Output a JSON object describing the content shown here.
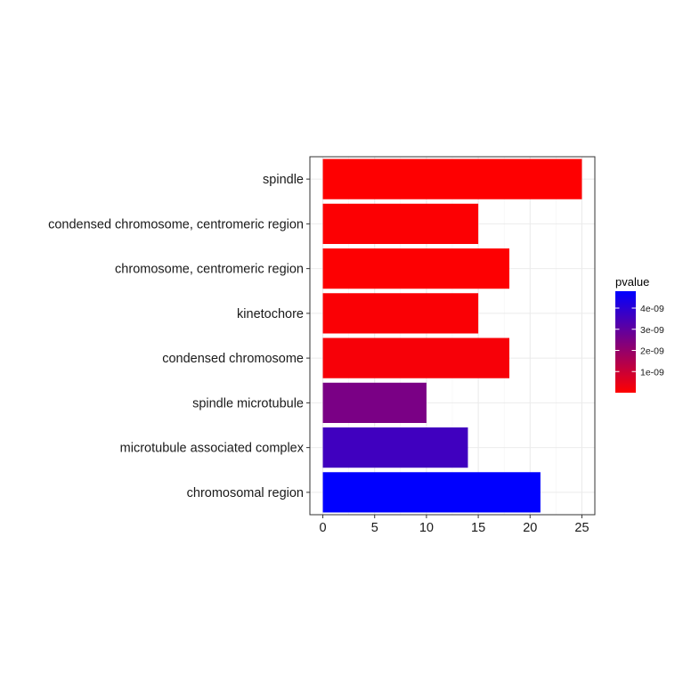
{
  "chart_data": {
    "type": "bar",
    "orientation": "horizontal",
    "title": "",
    "xlabel": "",
    "ylabel": "",
    "categories": [
      "spindle",
      "condensed chromosome, centromeric region",
      "chromosome, centromeric region",
      "kinetochore",
      "condensed chromosome",
      "spindle microtubule",
      "microtubule associated complex",
      "chromosomal region"
    ],
    "values": [
      25,
      15,
      18,
      15,
      18,
      10,
      14,
      21
    ],
    "pvalues": [
      1e-11,
      5e-11,
      3e-11,
      1e-10,
      1.5e-10,
      2.5e-09,
      3.6e-09,
      4.8e-09
    ],
    "xlim": [
      -1.25,
      26.25
    ],
    "xticks": [
      0,
      5,
      10,
      15,
      20,
      25
    ],
    "grid": true,
    "legend": {
      "title": "pvalue",
      "placement": "right",
      "range": [
        0,
        4.8e-09
      ],
      "ticks": [
        {
          "value": 1e-09,
          "label": "1e-09"
        },
        {
          "value": 2e-09,
          "label": "2e-09"
        },
        {
          "value": 3e-09,
          "label": "3e-09"
        },
        {
          "value": 4e-09,
          "label": "4e-09"
        }
      ],
      "low_color": "#ff0000",
      "high_color": "#0000ff"
    },
    "colors": {
      "low": "#ff0000",
      "high": "#0000ff",
      "grid": "#ebebeb",
      "panel_border": "#333333"
    }
  }
}
